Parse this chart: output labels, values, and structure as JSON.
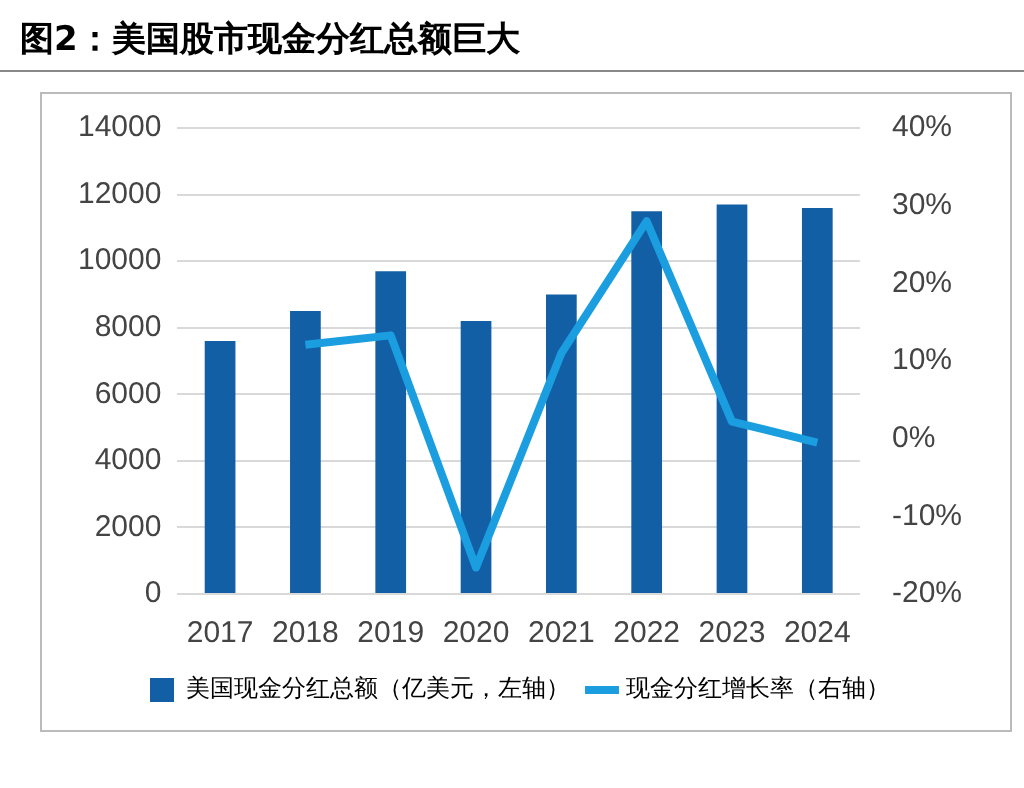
{
  "chart_data": {
    "type": "bar",
    "title": "图2：美国股市现金分红总额巨大",
    "categories": [
      "2017",
      "2018",
      "2019",
      "2020",
      "2021",
      "2022",
      "2023",
      "2024"
    ],
    "series": [
      {
        "name": "美国现金分红总额（亿美元，左轴）",
        "color": "#135fa5",
        "values": [
          7600,
          8500,
          9700,
          8200,
          9000,
          11500,
          11700,
          11600
        ]
      },
      {
        "name": "现金分红增长率（右轴）",
        "type": "line",
        "axis": "y2",
        "color": "#1a9ee0",
        "values": [
          null,
          12.1,
          13.3,
          -16.6,
          11.0,
          28,
          2.2,
          -0.5
        ]
      }
    ],
    "ylim": [
      0,
      14000
    ],
    "yticks": [
      0,
      2000,
      4000,
      6000,
      8000,
      10000,
      12000,
      14000
    ],
    "y2lim": [
      -20,
      40
    ],
    "y2ticks": [
      {
        "value": -20,
        "label": "-20%"
      },
      {
        "value": -10,
        "label": "-10%"
      },
      {
        "value": 0,
        "label": "0%"
      },
      {
        "value": 10,
        "label": "10%"
      },
      {
        "value": 20,
        "label": "20%"
      },
      {
        "value": 30,
        "label": "30%"
      },
      {
        "value": 40,
        "label": "40%"
      }
    ],
    "grid": "y",
    "legend": "bottom",
    "marker": "none",
    "line_style": "solid"
  }
}
